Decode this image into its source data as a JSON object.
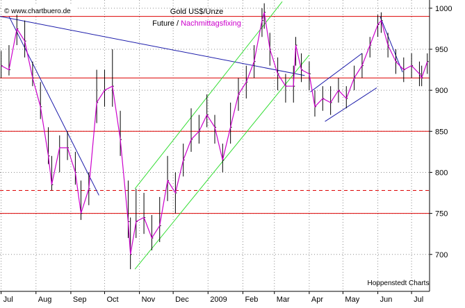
{
  "watermark": "© www.chartbuero.de",
  "credit": "Hoppenstedt Charts",
  "title": {
    "line1": "Gold US$/Unze",
    "line2_prefix": "Future / ",
    "line2_highlight": "Nachmittagsfixing"
  },
  "colors": {
    "background": "#ffffff",
    "grid": "#8c8c8c",
    "frame": "#000000",
    "bars": "#000000",
    "fixing": "#cc00cc",
    "support_lines": "#dd0000",
    "downtrend_lines": "#1a1aaa",
    "channel_lines": "#33dd33",
    "text": "#000000"
  },
  "chart_data": {
    "type": "line",
    "title": "Gold US$/Unze",
    "subtitle": "Future / Nachmittagsfixing",
    "y_axis": {
      "position": "right",
      "range": [
        655,
        1010
      ],
      "ticks": [
        700,
        750,
        800,
        850,
        900,
        950,
        1000
      ],
      "grid": "dotted"
    },
    "x_axis": {
      "range": [
        "2008-06-30",
        "2009-07-17"
      ],
      "month_labels": [
        {
          "date": "2008-07-01",
          "label": "Jul"
        },
        {
          "date": "2008-08-01",
          "label": "Aug"
        },
        {
          "date": "2008-09-01",
          "label": "Sep"
        },
        {
          "date": "2008-10-01",
          "label": "Oct"
        },
        {
          "date": "2008-11-01",
          "label": "Nov"
        },
        {
          "date": "2008-12-01",
          "label": "Dec"
        },
        {
          "date": "2009-01-01",
          "label": "2009"
        },
        {
          "date": "2009-02-01",
          "label": "Feb"
        },
        {
          "date": "2009-03-01",
          "label": "Mar"
        },
        {
          "date": "2009-04-01",
          "label": "Apr"
        },
        {
          "date": "2009-05-01",
          "label": "May"
        },
        {
          "date": "2009-06-01",
          "label": "Jun"
        },
        {
          "date": "2009-07-01",
          "label": "Jul"
        }
      ]
    },
    "series": [
      {
        "name": "Nachmittagsfixing",
        "style": "magenta line",
        "points": [
          [
            "2008-07-01",
            930
          ],
          [
            "2008-07-08",
            925
          ],
          [
            "2008-07-15",
            975
          ],
          [
            "2008-07-22",
            960
          ],
          [
            "2008-07-29",
            915
          ],
          [
            "2008-08-05",
            880
          ],
          [
            "2008-08-12",
            820
          ],
          [
            "2008-08-15",
            785
          ],
          [
            "2008-08-22",
            830
          ],
          [
            "2008-08-29",
            830
          ],
          [
            "2008-09-05",
            800
          ],
          [
            "2008-09-10",
            750
          ],
          [
            "2008-09-17",
            780
          ],
          [
            "2008-09-24",
            885
          ],
          [
            "2008-10-01",
            900
          ],
          [
            "2008-10-08",
            905
          ],
          [
            "2008-10-15",
            840
          ],
          [
            "2008-10-22",
            740
          ],
          [
            "2008-10-24",
            700
          ],
          [
            "2008-10-29",
            740
          ],
          [
            "2008-11-05",
            745
          ],
          [
            "2008-11-12",
            720
          ],
          [
            "2008-11-19",
            735
          ],
          [
            "2008-11-26",
            790
          ],
          [
            "2008-12-03",
            775
          ],
          [
            "2008-12-10",
            815
          ],
          [
            "2008-12-17",
            840
          ],
          [
            "2008-12-24",
            850
          ],
          [
            "2008-12-31",
            870
          ],
          [
            "2009-01-07",
            855
          ],
          [
            "2009-01-14",
            815
          ],
          [
            "2009-01-21",
            855
          ],
          [
            "2009-01-28",
            895
          ],
          [
            "2009-02-04",
            910
          ],
          [
            "2009-02-11",
            935
          ],
          [
            "2009-02-18",
            985
          ],
          [
            "2009-02-20",
            995
          ],
          [
            "2009-02-25",
            950
          ],
          [
            "2009-03-04",
            920
          ],
          [
            "2009-03-11",
            905
          ],
          [
            "2009-03-18",
            905
          ],
          [
            "2009-03-20",
            955
          ],
          [
            "2009-03-25",
            925
          ],
          [
            "2009-04-01",
            920
          ],
          [
            "2009-04-06",
            880
          ],
          [
            "2009-04-13",
            890
          ],
          [
            "2009-04-20",
            885
          ],
          [
            "2009-04-27",
            900
          ],
          [
            "2009-05-04",
            890
          ],
          [
            "2009-05-11",
            915
          ],
          [
            "2009-05-18",
            930
          ],
          [
            "2009-05-25",
            955
          ],
          [
            "2009-06-01",
            980
          ],
          [
            "2009-06-04",
            985
          ],
          [
            "2009-06-10",
            955
          ],
          [
            "2009-06-17",
            935
          ],
          [
            "2009-06-24",
            925
          ],
          [
            "2009-07-01",
            930
          ],
          [
            "2009-07-08",
            920
          ],
          [
            "2009-07-10",
            915
          ],
          [
            "2009-07-15",
            935
          ]
        ]
      },
      {
        "name": "Future",
        "style": "black high-low bars",
        "bars": [
          [
            "2008-07-01",
            915,
            948,
            930
          ],
          [
            "2008-07-08",
            918,
            955,
            925
          ],
          [
            "2008-07-15",
            955,
            992,
            975
          ],
          [
            "2008-07-22",
            940,
            985,
            960
          ],
          [
            "2008-07-29",
            905,
            935,
            915
          ],
          [
            "2008-08-05",
            865,
            910,
            880
          ],
          [
            "2008-08-12",
            810,
            855,
            820
          ],
          [
            "2008-08-15",
            778,
            820,
            785
          ],
          [
            "2008-08-22",
            800,
            845,
            830
          ],
          [
            "2008-08-29",
            815,
            850,
            830
          ],
          [
            "2008-09-05",
            785,
            825,
            800
          ],
          [
            "2008-09-10",
            742,
            790,
            750
          ],
          [
            "2008-09-17",
            760,
            800,
            780
          ],
          [
            "2008-09-24",
            860,
            925,
            885
          ],
          [
            "2008-10-01",
            880,
            925,
            900
          ],
          [
            "2008-10-08",
            880,
            950,
            905
          ],
          [
            "2008-10-15",
            820,
            875,
            840
          ],
          [
            "2008-10-22",
            720,
            790,
            740
          ],
          [
            "2008-10-24",
            682,
            745,
            700
          ],
          [
            "2008-10-29",
            720,
            780,
            740
          ],
          [
            "2008-11-05",
            725,
            775,
            745
          ],
          [
            "2008-11-12",
            705,
            748,
            720
          ],
          [
            "2008-11-19",
            715,
            770,
            735
          ],
          [
            "2008-11-26",
            765,
            820,
            790
          ],
          [
            "2008-12-03",
            750,
            800,
            775
          ],
          [
            "2008-12-10",
            795,
            835,
            815
          ],
          [
            "2008-12-17",
            825,
            878,
            840
          ],
          [
            "2008-12-24",
            835,
            870,
            850
          ],
          [
            "2008-12-31",
            855,
            895,
            870
          ],
          [
            "2009-01-07",
            835,
            870,
            855
          ],
          [
            "2009-01-14",
            800,
            835,
            815
          ],
          [
            "2009-01-21",
            835,
            885,
            855
          ],
          [
            "2009-01-28",
            875,
            915,
            895
          ],
          [
            "2009-02-04",
            890,
            930,
            910
          ],
          [
            "2009-02-11",
            915,
            955,
            935
          ],
          [
            "2009-02-18",
            965,
            1000,
            985
          ],
          [
            "2009-02-20",
            975,
            1006,
            995
          ],
          [
            "2009-02-25",
            930,
            970,
            950
          ],
          [
            "2009-03-04",
            900,
            940,
            920
          ],
          [
            "2009-03-11",
            885,
            920,
            905
          ],
          [
            "2009-03-18",
            885,
            930,
            905
          ],
          [
            "2009-03-20",
            930,
            965,
            955
          ],
          [
            "2009-03-25",
            910,
            945,
            925
          ],
          [
            "2009-04-01",
            900,
            935,
            920
          ],
          [
            "2009-04-06",
            868,
            900,
            880
          ],
          [
            "2009-04-13",
            875,
            905,
            890
          ],
          [
            "2009-04-20",
            870,
            905,
            885
          ],
          [
            "2009-04-27",
            885,
            915,
            900
          ],
          [
            "2009-05-04",
            878,
            905,
            890
          ],
          [
            "2009-05-11",
            900,
            930,
            915
          ],
          [
            "2009-05-18",
            915,
            945,
            930
          ],
          [
            "2009-05-25",
            940,
            965,
            955
          ],
          [
            "2009-06-01",
            965,
            992,
            980
          ],
          [
            "2009-06-04",
            970,
            995,
            985
          ],
          [
            "2009-06-10",
            940,
            970,
            955
          ],
          [
            "2009-06-17",
            920,
            950,
            935
          ],
          [
            "2009-06-24",
            910,
            940,
            925
          ],
          [
            "2009-07-01",
            915,
            945,
            930
          ],
          [
            "2009-07-08",
            905,
            935,
            920
          ],
          [
            "2009-07-10",
            905,
            930,
            915
          ],
          [
            "2009-07-15",
            920,
            945,
            935
          ]
        ]
      }
    ],
    "horizontal_lines": [
      {
        "value": 990,
        "style": "solid red"
      },
      {
        "value": 915,
        "style": "solid red"
      },
      {
        "value": 850,
        "style": "solid red"
      },
      {
        "value": 778,
        "style": "dashed red"
      },
      {
        "value": 750,
        "style": "solid red"
      }
    ],
    "trend_lines": [
      {
        "style": "blue",
        "points": [
          [
            "2008-06-30",
            990
          ],
          [
            "2009-03-28",
            918
          ]
        ]
      },
      {
        "style": "blue",
        "points": [
          [
            "2008-07-08",
            990
          ],
          [
            "2008-09-26",
            772
          ]
        ]
      },
      {
        "style": "blue",
        "points": [
          [
            "2009-04-02",
            898
          ],
          [
            "2009-05-18",
            945
          ]
        ]
      },
      {
        "style": "blue",
        "points": [
          [
            "2009-04-15",
            862
          ],
          [
            "2009-05-31",
            903
          ]
        ]
      },
      {
        "style": "blue",
        "points": [
          [
            "2009-06-03",
            990
          ],
          [
            "2009-06-23",
            922
          ]
        ]
      },
      {
        "style": "green",
        "points": [
          [
            "2008-10-28",
            780
          ],
          [
            "2009-03-08",
            1008
          ]
        ]
      },
      {
        "style": "green",
        "points": [
          [
            "2008-10-28",
            682
          ],
          [
            "2009-04-01",
            943
          ]
        ]
      }
    ]
  }
}
